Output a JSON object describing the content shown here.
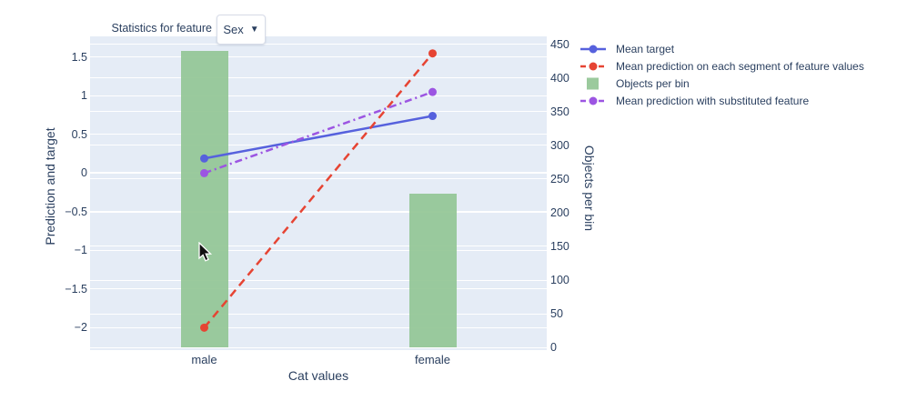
{
  "controls": {
    "dropdown_label": "Statistics for feature",
    "dropdown_value": "Sex",
    "dropdown_caret": "▼"
  },
  "chart_data": {
    "type": "bar+line",
    "title": "",
    "categories": [
      "male",
      "female"
    ],
    "series": [
      {
        "name": "Mean target",
        "type": "line",
        "axis": "left",
        "dash": "solid",
        "color": "#5661dd",
        "values": [
          0.19,
          0.74
        ]
      },
      {
        "name": "Mean prediction on each segment of feature values",
        "type": "line",
        "axis": "left",
        "dash": "dash",
        "color": "#e64433",
        "values": [
          -2.0,
          1.55
        ]
      },
      {
        "name": "Objects per bin",
        "type": "bar",
        "axis": "right",
        "color": "#92c595",
        "values": [
          440,
          228
        ]
      },
      {
        "name": "Mean prediction with substituted feature",
        "type": "line",
        "axis": "left",
        "dash": "dashdot",
        "color": "#9c55e2",
        "values": [
          0.0,
          1.05
        ]
      }
    ],
    "xlabel": "Cat values",
    "ylabel_left": "Prediction and target",
    "ylabel_right": "Objects per bin",
    "yticks_left": [
      "1.5",
      "1",
      "0.5",
      "0",
      "−0.5",
      "−1",
      "−1.5",
      "−2"
    ],
    "ytick_values_left": [
      1.5,
      1,
      0.5,
      0,
      -0.5,
      -1,
      -1.5,
      -2
    ],
    "yticks_right": [
      "450",
      "400",
      "350",
      "300",
      "250",
      "200",
      "150",
      "100",
      "50",
      "0"
    ],
    "ytick_values_right": [
      450,
      400,
      350,
      300,
      250,
      200,
      150,
      100,
      50,
      0
    ],
    "ylim_left": [
      -2.29,
      1.77
    ],
    "ylim_right": [
      -4,
      462
    ],
    "grid": true,
    "legend_position": "right",
    "colors": {
      "plot_background": "#e5ecf6",
      "grid": "#ffffff",
      "text": "#2a3f5f"
    }
  }
}
